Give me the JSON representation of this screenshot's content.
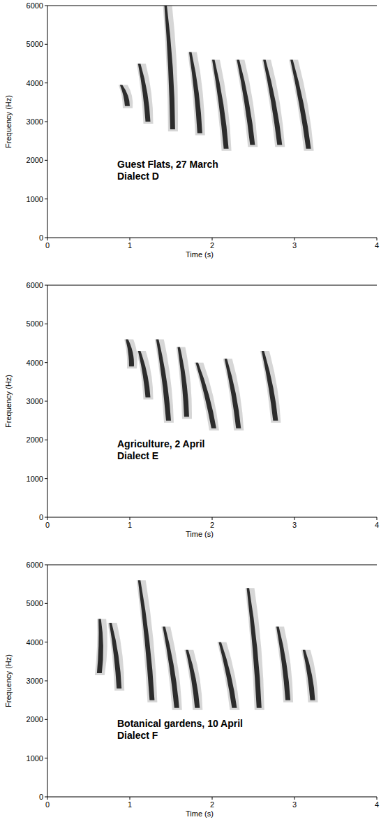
{
  "chart_data": [
    {
      "type": "spectrogram",
      "xlabel": "Time (s)",
      "ylabel": "Frequency (Hz)",
      "xlim": [
        0,
        4
      ],
      "ylim": [
        0,
        6000
      ],
      "xticks": [
        0,
        1,
        2,
        3,
        4
      ],
      "yticks": [
        0,
        1000,
        2000,
        3000,
        4000,
        5000,
        6000
      ],
      "annotations": [
        "Guest Flats, 27 March",
        "Dialect D"
      ],
      "color": "#1a1a1a",
      "notes": [
        {
          "start": 0.88,
          "end": 1.0,
          "f_high": 3950,
          "f_low": 3400
        },
        {
          "start": 1.1,
          "end": 1.25,
          "f_high": 4500,
          "f_low": 3000
        },
        {
          "start": 1.42,
          "end": 1.55,
          "f_high": 6000,
          "f_low": 2800
        },
        {
          "start": 1.72,
          "end": 1.88,
          "f_high": 4800,
          "f_low": 2700
        },
        {
          "start": 2.0,
          "end": 2.2,
          "f_high": 4600,
          "f_low": 2300
        },
        {
          "start": 2.3,
          "end": 2.52,
          "f_high": 4600,
          "f_low": 2400
        },
        {
          "start": 2.62,
          "end": 2.85,
          "f_high": 4600,
          "f_low": 2400
        },
        {
          "start": 2.95,
          "end": 3.2,
          "f_high": 4600,
          "f_low": 2300
        }
      ]
    },
    {
      "type": "spectrogram",
      "xlabel": "Time (s)",
      "ylabel": "Frequency (Hz)",
      "xlim": [
        0,
        4
      ],
      "ylim": [
        0,
        6000
      ],
      "xticks": [
        0,
        1,
        2,
        3,
        4
      ],
      "yticks": [
        0,
        1000,
        2000,
        3000,
        4000,
        5000,
        6000
      ],
      "annotations": [
        "Agriculture, 2 April",
        "Dialect E"
      ],
      "color": "#1a1a1a",
      "notes": [
        {
          "start": 0.95,
          "end": 1.05,
          "f_high": 4600,
          "f_low": 3900
        },
        {
          "start": 1.1,
          "end": 1.25,
          "f_high": 4300,
          "f_low": 3100
        },
        {
          "start": 1.32,
          "end": 1.5,
          "f_high": 4600,
          "f_low": 2500
        },
        {
          "start": 1.58,
          "end": 1.72,
          "f_high": 4400,
          "f_low": 2600
        },
        {
          "start": 1.8,
          "end": 2.05,
          "f_high": 4000,
          "f_low": 2300
        },
        {
          "start": 2.15,
          "end": 2.35,
          "f_high": 4100,
          "f_low": 2300
        },
        {
          "start": 2.6,
          "end": 2.8,
          "f_high": 4300,
          "f_low": 2500
        }
      ]
    },
    {
      "type": "spectrogram",
      "xlabel": "Time (s)",
      "ylabel": "Frequency (Hz)",
      "xlim": [
        0,
        4
      ],
      "ylim": [
        0,
        6000
      ],
      "xticks": [
        0,
        1,
        2,
        3,
        4
      ],
      "yticks": [
        0,
        1000,
        2000,
        3000,
        4000,
        5000,
        6000
      ],
      "annotations": [
        "Botanical gardens, 10 April",
        "Dialect F"
      ],
      "color": "#1a1a1a",
      "notes": [
        {
          "start": 0.62,
          "end": 0.66,
          "f_high": 4600,
          "f_low": 3200
        },
        {
          "start": 0.75,
          "end": 0.9,
          "f_high": 4500,
          "f_low": 2800
        },
        {
          "start": 1.1,
          "end": 1.3,
          "f_high": 5600,
          "f_low": 2500
        },
        {
          "start": 1.4,
          "end": 1.6,
          "f_high": 4400,
          "f_low": 2300
        },
        {
          "start": 1.68,
          "end": 1.85,
          "f_high": 3800,
          "f_low": 2300
        },
        {
          "start": 2.08,
          "end": 2.3,
          "f_high": 4000,
          "f_low": 2300
        },
        {
          "start": 2.42,
          "end": 2.6,
          "f_high": 5400,
          "f_low": 2300
        },
        {
          "start": 2.78,
          "end": 2.95,
          "f_high": 4400,
          "f_low": 2500
        },
        {
          "start": 3.1,
          "end": 3.25,
          "f_high": 3800,
          "f_low": 2500
        }
      ]
    }
  ]
}
